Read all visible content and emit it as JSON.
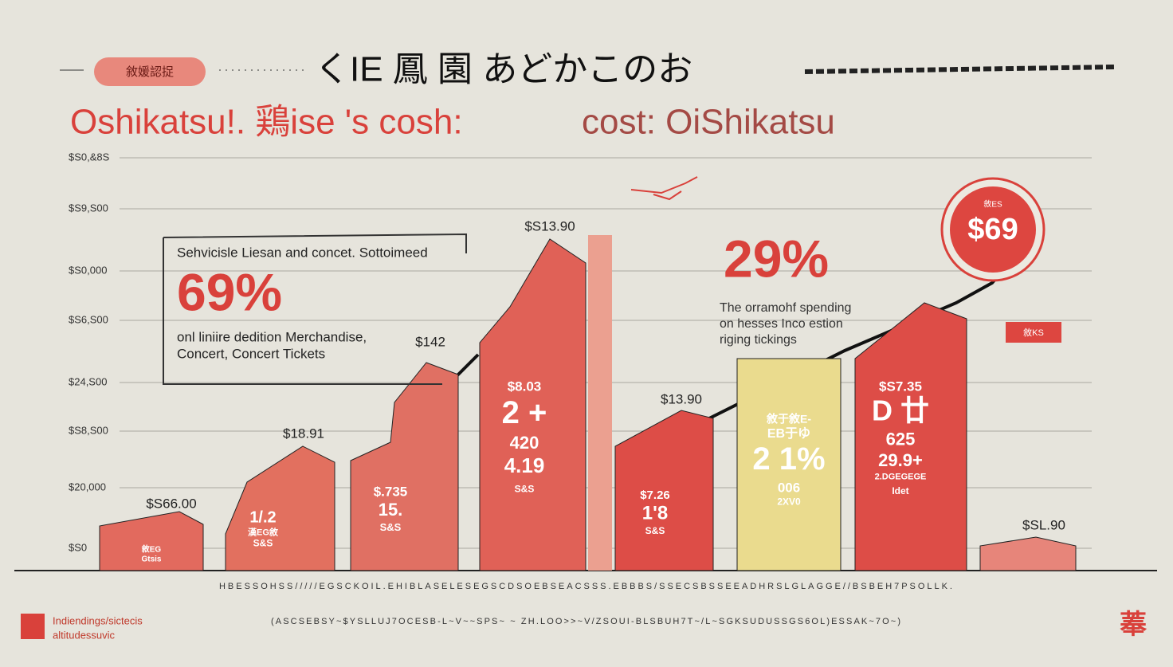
{
  "header": {
    "tag": "敘媛認捉",
    "title_jp": "くIE 鳳 園 あどかこのお",
    "title_red": "Oshikatsu!. 鶏ise 's cosh:",
    "title_gray": "cost: OiShikatsu"
  },
  "y_axis_labels": [
    "$S0,&8S",
    "$S9,S00",
    "$S0,000",
    "$S6,S00",
    "$24,S00",
    "$S8,S00",
    "$20,000",
    "$S0"
  ],
  "callout": {
    "heading": "Sehvicisle Liesan and concet. Sottoimeed",
    "percent": "69%",
    "line1": "onl  liniire dedition Merchandise,",
    "line2": "Concert,  Concert Tickets"
  },
  "bars": [
    {
      "top": "$S66.00",
      "inner": [
        "敘EG",
        "Gtsis"
      ]
    },
    {
      "top": "$18.91",
      "inner": [
        "1/.2",
        "漢EG敘",
        "S&S"
      ]
    },
    {
      "top": "$142",
      "inner": [
        "$.735",
        "15.",
        "S&S"
      ]
    },
    {
      "top": "$S13.90",
      "inner": [
        "$8.03",
        "2 +",
        "420",
        "4.19",
        "S&S"
      ]
    },
    {
      "top": "$13.90",
      "inner": [
        "$7.26",
        "1'8",
        "S&S"
      ]
    },
    {
      "top": "",
      "inner": [
        "敘于敘E-",
        "EB于ゆ",
        "2 1%",
        "006",
        "2XV0"
      ]
    },
    {
      "top": "",
      "inner": [
        "$S7.35",
        "D 廿",
        "625",
        "29.9+",
        "2.DGEGEGE",
        "Idet"
      ]
    },
    {
      "top": "$SL.90",
      "inner": []
    }
  ],
  "annotation": {
    "percent": "29%",
    "line1": "The orramohf spending",
    "line2": "on hesses Inco estion",
    "line3": "riging tickings"
  },
  "badge": {
    "small": "敘ES",
    "value": "$69"
  },
  "box_label": "敘KS",
  "footer": {
    "row1": "HBESSOHSS/////EGSCKOIL.EHIBLASELESEGSCDSOEBSEACSSS.EBBBS/SSECSBSSEEADHRSLGLAGGE//BSBEH7PSOLLK.",
    "row2": "(ASCSEBSY~$YSLLUJ7OCESB-L~V~~SPS~ ~ ZH.LOO>>~V/ZSOUI-BLSBUH7T~/L~SGKSUDUSSGS6OL)ESSAK~7O~)",
    "logo1": "Indiendings/sictecis",
    "logo2": "altitudessuvic",
    "corner": "菶"
  }
}
